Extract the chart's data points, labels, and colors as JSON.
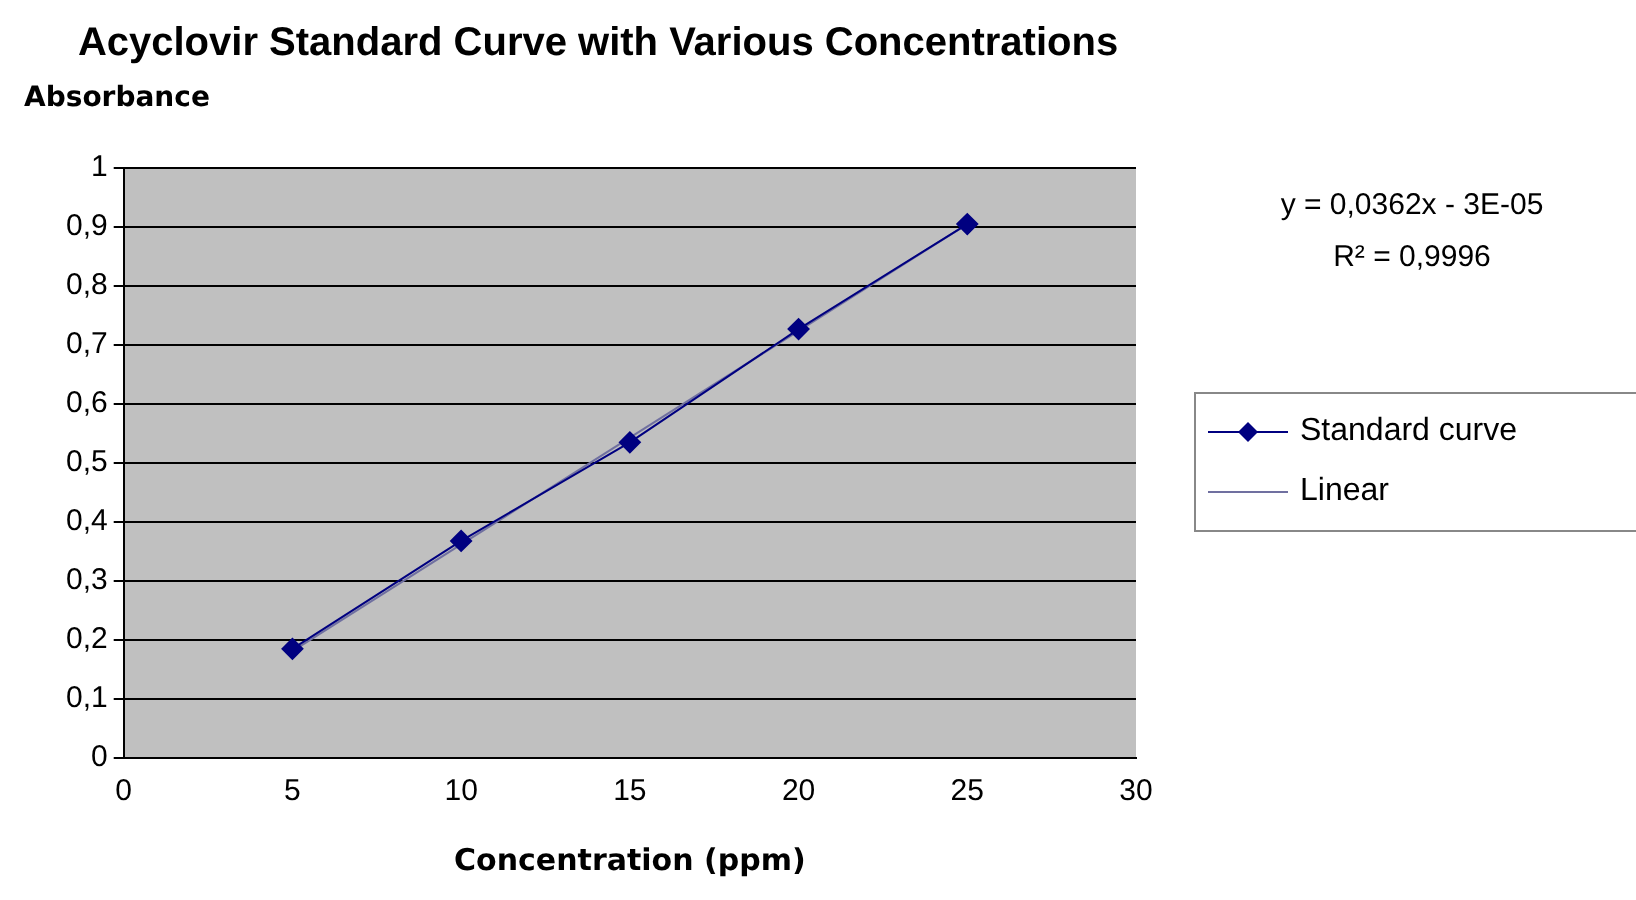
{
  "chart_data": {
    "type": "line",
    "title": "Acyclovir Standard Curve with Various Concentrations",
    "xlabel": "Concentration (ppm)",
    "ylabel": "Absorbance",
    "x": [
      5,
      10,
      15,
      20,
      25
    ],
    "series": [
      {
        "name": "Standard curve",
        "color": "#000080",
        "values": [
          0.185,
          0.368,
          0.535,
          0.727,
          0.905
        ]
      },
      {
        "name": "Linear",
        "color": "#7070a0",
        "x": [
          5,
          25
        ],
        "values": [
          0.181,
          0.905
        ],
        "marker": "none"
      }
    ],
    "xlim": [
      0,
      30
    ],
    "xticks": [
      0,
      5,
      10,
      15,
      20,
      25,
      30
    ],
    "ylim": [
      0,
      1
    ],
    "yticks": [
      0,
      {
        "value": 0.1,
        "label": "0,1"
      },
      {
        "value": 0.2,
        "label": "0,2"
      },
      {
        "value": 0.3,
        "label": "0,3"
      },
      {
        "value": 0.4,
        "label": "0,4"
      },
      {
        "value": 0.5,
        "label": "0,5"
      },
      {
        "value": 0.6,
        "label": "0,6"
      },
      {
        "value": 0.7,
        "label": "0,7"
      },
      {
        "value": 0.8,
        "label": "0,8"
      },
      {
        "value": 0.9,
        "label": "0,9"
      },
      1
    ],
    "annotations": [
      "y = 0,0362x - 3E-05",
      "R² = 0,9996"
    ],
    "grid": "y",
    "legend": "right",
    "marker": "diamond",
    "line_style": "solid"
  }
}
